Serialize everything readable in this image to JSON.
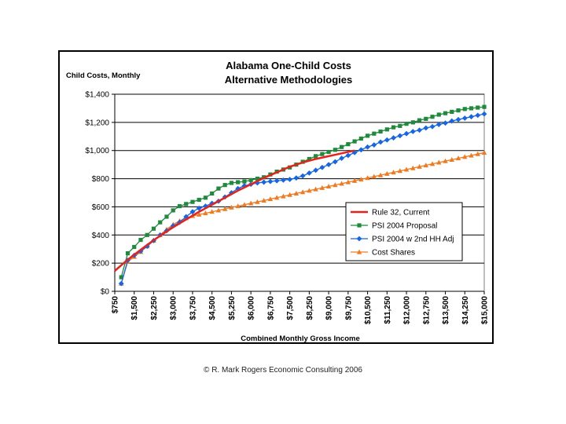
{
  "chart_data": {
    "type": "line",
    "title": [
      "Alabama One-Child Costs",
      "Alternative Methodologies"
    ],
    "ylabel": "Child Costs, Monthly",
    "xlabel": "Combined Monthly Gross Income",
    "xlim": [
      750,
      15000
    ],
    "ylim": [
      0,
      1400
    ],
    "yticks": [
      0,
      200,
      400,
      600,
      800,
      1000,
      1200,
      1400
    ],
    "ytick_labels": [
      "$0",
      "$200",
      "$400",
      "$600",
      "$800",
      "$1,000",
      "$1,200",
      "$1,400"
    ],
    "xticks": [
      750,
      1500,
      2250,
      3000,
      3750,
      4500,
      5250,
      6000,
      6750,
      7500,
      8250,
      9000,
      9750,
      10500,
      11250,
      12000,
      12750,
      13500,
      14250,
      15000
    ],
    "xtick_labels": [
      "$750",
      "$1,500",
      "$2,250",
      "$3,000",
      "$3,750",
      "$4,500",
      "$5,250",
      "$6,000",
      "$6,750",
      "$7,500",
      "$8,250",
      "$9,000",
      "$9,750",
      "$10,500",
      "$11,250",
      "$12,000",
      "$12,750",
      "$13,500",
      "$14,250",
      "$15,000"
    ],
    "grid": "horizontal",
    "legend_position": "lower-right",
    "series": [
      {
        "name": "Rule 32, Current",
        "color": "#e8221b",
        "marker": "none",
        "x": [
          750,
          1000,
          1250,
          1500,
          2000,
          2500,
          3000,
          3500,
          4000,
          4500,
          5000,
          5500,
          6000,
          6500,
          7000,
          7500,
          8000,
          8500,
          9000,
          9500,
          10000
        ],
        "values": [
          145,
          185,
          225,
          260,
          330,
          395,
          455,
          510,
          565,
          615,
          665,
          715,
          760,
          805,
          845,
          885,
          915,
          940,
          960,
          980,
          1000
        ]
      },
      {
        "name": "PSI 2004 Proposal",
        "color": "#1f8a3b",
        "marker": "square",
        "x": [
          1000,
          1250,
          1500,
          1750,
          2000,
          2250,
          2500,
          2750,
          3000,
          3250,
          3500,
          3750,
          4000,
          4250,
          4500,
          4750,
          5000,
          5250,
          5500,
          5750,
          6000,
          6250,
          6500,
          6750,
          7000,
          7250,
          7500,
          7750,
          8000,
          8250,
          8500,
          8750,
          9000,
          9250,
          9500,
          9750,
          10000,
          10250,
          10500,
          10750,
          11000,
          11250,
          11500,
          11750,
          12000,
          12250,
          12500,
          12750,
          13000,
          13250,
          13500,
          13750,
          14000,
          14250,
          14500,
          14750,
          15000
        ],
        "values": [
          100,
          270,
          315,
          365,
          400,
          445,
          490,
          530,
          575,
          605,
          620,
          635,
          650,
          665,
          695,
          730,
          755,
          770,
          775,
          780,
          790,
          800,
          810,
          830,
          850,
          865,
          880,
          900,
          920,
          940,
          960,
          975,
          990,
          1005,
          1025,
          1045,
          1065,
          1085,
          1105,
          1120,
          1135,
          1150,
          1165,
          1175,
          1190,
          1200,
          1215,
          1225,
          1240,
          1255,
          1265,
          1275,
          1285,
          1295,
          1300,
          1305,
          1310
        ]
      },
      {
        "name": "PSI 2004 w 2nd HH Adj",
        "color": "#1565e8",
        "marker": "diamond",
        "x": [
          1000,
          1250,
          1500,
          1750,
          2000,
          2250,
          2500,
          2750,
          3000,
          3250,
          3500,
          3750,
          4000,
          4250,
          4500,
          4750,
          5000,
          5250,
          5500,
          5750,
          6000,
          6250,
          6500,
          6750,
          7000,
          7250,
          7500,
          7750,
          8000,
          8250,
          8500,
          8750,
          9000,
          9250,
          9500,
          9750,
          10000,
          10250,
          10500,
          10750,
          11000,
          11250,
          11500,
          11750,
          12000,
          12250,
          12500,
          12750,
          13000,
          13250,
          13500,
          13750,
          14000,
          14250,
          14500,
          14750,
          15000
        ],
        "values": [
          55,
          220,
          255,
          285,
          320,
          360,
          400,
          430,
          465,
          490,
          530,
          565,
          590,
          605,
          625,
          640,
          670,
          700,
          730,
          750,
          760,
          770,
          775,
          780,
          785,
          790,
          795,
          805,
          820,
          840,
          860,
          880,
          900,
          920,
          945,
          965,
          985,
          1005,
          1025,
          1040,
          1060,
          1075,
          1090,
          1105,
          1120,
          1135,
          1145,
          1160,
          1170,
          1185,
          1195,
          1210,
          1220,
          1230,
          1240,
          1250,
          1260
        ]
      },
      {
        "name": "Cost Shares",
        "color": "#f07a20",
        "marker": "triangle",
        "x": [
          1000,
          1250,
          1500,
          1750,
          2000,
          2250,
          2500,
          2750,
          3000,
          3250,
          3500,
          3750,
          4000,
          4250,
          4500,
          4750,
          5000,
          5250,
          5500,
          5750,
          6000,
          6250,
          6500,
          6750,
          7000,
          7250,
          7500,
          7750,
          8000,
          8250,
          8500,
          8750,
          9000,
          9250,
          9500,
          9750,
          10000,
          10250,
          10500,
          10750,
          11000,
          11250,
          11500,
          11750,
          12000,
          12250,
          12500,
          12750,
          13000,
          13250,
          13500,
          13750,
          14000,
          14250,
          14500,
          14750,
          15000
        ],
        "values": [
          55,
          210,
          245,
          280,
          320,
          360,
          400,
          440,
          475,
          500,
          520,
          535,
          545,
          555,
          565,
          575,
          585,
          595,
          605,
          615,
          625,
          635,
          645,
          655,
          665,
          675,
          685,
          695,
          705,
          715,
          725,
          735,
          745,
          755,
          765,
          775,
          785,
          795,
          805,
          815,
          825,
          835,
          845,
          855,
          865,
          875,
          885,
          895,
          905,
          915,
          925,
          935,
          945,
          955,
          965,
          975,
          985
        ]
      }
    ]
  },
  "copyright": "© R. Mark Rogers Economic Consulting 2006"
}
